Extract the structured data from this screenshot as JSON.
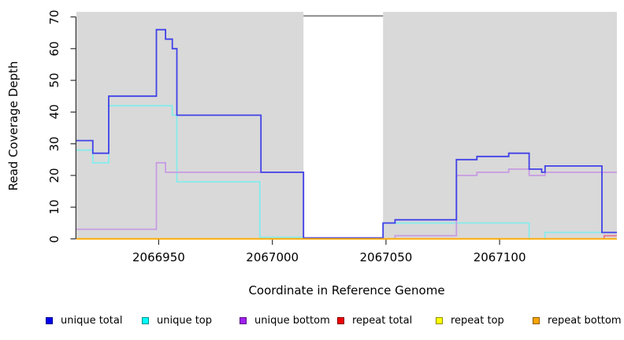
{
  "figure": {
    "panel_color": "#D9D9D9",
    "background": "#FFFFFF",
    "axis_color": "#333333"
  },
  "chart_data": {
    "type": "line",
    "step": true,
    "title": "",
    "xlabel": "Coordinate in Reference Genome",
    "ylabel": "Read Coverage Depth",
    "xlim": [
      2066913.8,
      2067151.6
    ],
    "ylim": [
      0,
      71.6
    ],
    "x_ticks": [
      2066950,
      2067000,
      2067050,
      2067100
    ],
    "y_ticks": [
      0,
      10,
      20,
      30,
      40,
      50,
      60,
      70
    ],
    "grid": false,
    "legend_position": "bottom-horizontal",
    "panel_color": "#D9D9D9",
    "unique_mappable_regions": [
      [
        2066913.8,
        2067013.7
      ],
      [
        2067048.7,
        2067151.6
      ]
    ],
    "repeat_region": {
      "x1": 2067013.7,
      "x2": 2067048.7,
      "marker_value": 70.3,
      "marker_color": "#8A8A8A"
    },
    "series": [
      {
        "name": "unique total",
        "legend_color": "#0000EE",
        "line_color": "#4141E8",
        "points": [
          [
            2066913.8,
            31
          ],
          [
            2066921,
            27
          ],
          [
            2066928,
            45
          ],
          [
            2066949,
            66
          ],
          [
            2066953,
            63
          ],
          [
            2066956,
            60
          ],
          [
            2066958,
            39
          ],
          [
            2066995,
            21
          ],
          [
            2067013.7,
            0.3
          ],
          [
            2067048.7,
            5
          ],
          [
            2067054,
            6
          ],
          [
            2067081,
            25
          ],
          [
            2067090,
            26
          ],
          [
            2067104,
            27
          ],
          [
            2067113,
            22
          ],
          [
            2067118.5,
            21
          ],
          [
            2067120,
            23
          ],
          [
            2067145,
            2
          ]
        ]
      },
      {
        "name": "unique top",
        "legend_color": "#00FFFF",
        "line_color": "#86EBEB",
        "points": [
          [
            2066913.8,
            28
          ],
          [
            2066921,
            24
          ],
          [
            2066928,
            42
          ],
          [
            2066956,
            39
          ],
          [
            2066958,
            18
          ],
          [
            2066994.5,
            0.5
          ],
          [
            2067013.7,
            0
          ],
          [
            2067048.7,
            5
          ],
          [
            2067113,
            0
          ],
          [
            2067120,
            2
          ]
        ]
      },
      {
        "name": "unique bottom",
        "legend_color": "#A020F0",
        "line_color": "#C79BE3",
        "points": [
          [
            2066913.8,
            3
          ],
          [
            2066949,
            24
          ],
          [
            2066953,
            21
          ],
          [
            2067013.7,
            0
          ],
          [
            2067054,
            1
          ],
          [
            2067081,
            20
          ],
          [
            2067090,
            21
          ],
          [
            2067104,
            22
          ],
          [
            2067113,
            20
          ],
          [
            2067120,
            21
          ]
        ]
      },
      {
        "name": "repeat total",
        "legend_color": "#EE0000",
        "line_color": "#E8718F",
        "points": [
          [
            2066913.8,
            0
          ],
          [
            2067146,
            1
          ]
        ]
      },
      {
        "name": "repeat top",
        "legend_color": "#FFFF00",
        "line_color": "#FFFF00",
        "points": [
          [
            2066913.8,
            0
          ]
        ]
      },
      {
        "name": "repeat bottom",
        "legend_color": "#FFA500",
        "line_color": "#FFA500",
        "points": [
          [
            2066913.8,
            0
          ]
        ]
      }
    ],
    "draw_order": [
      1,
      2,
      0,
      3,
      4,
      5
    ]
  }
}
